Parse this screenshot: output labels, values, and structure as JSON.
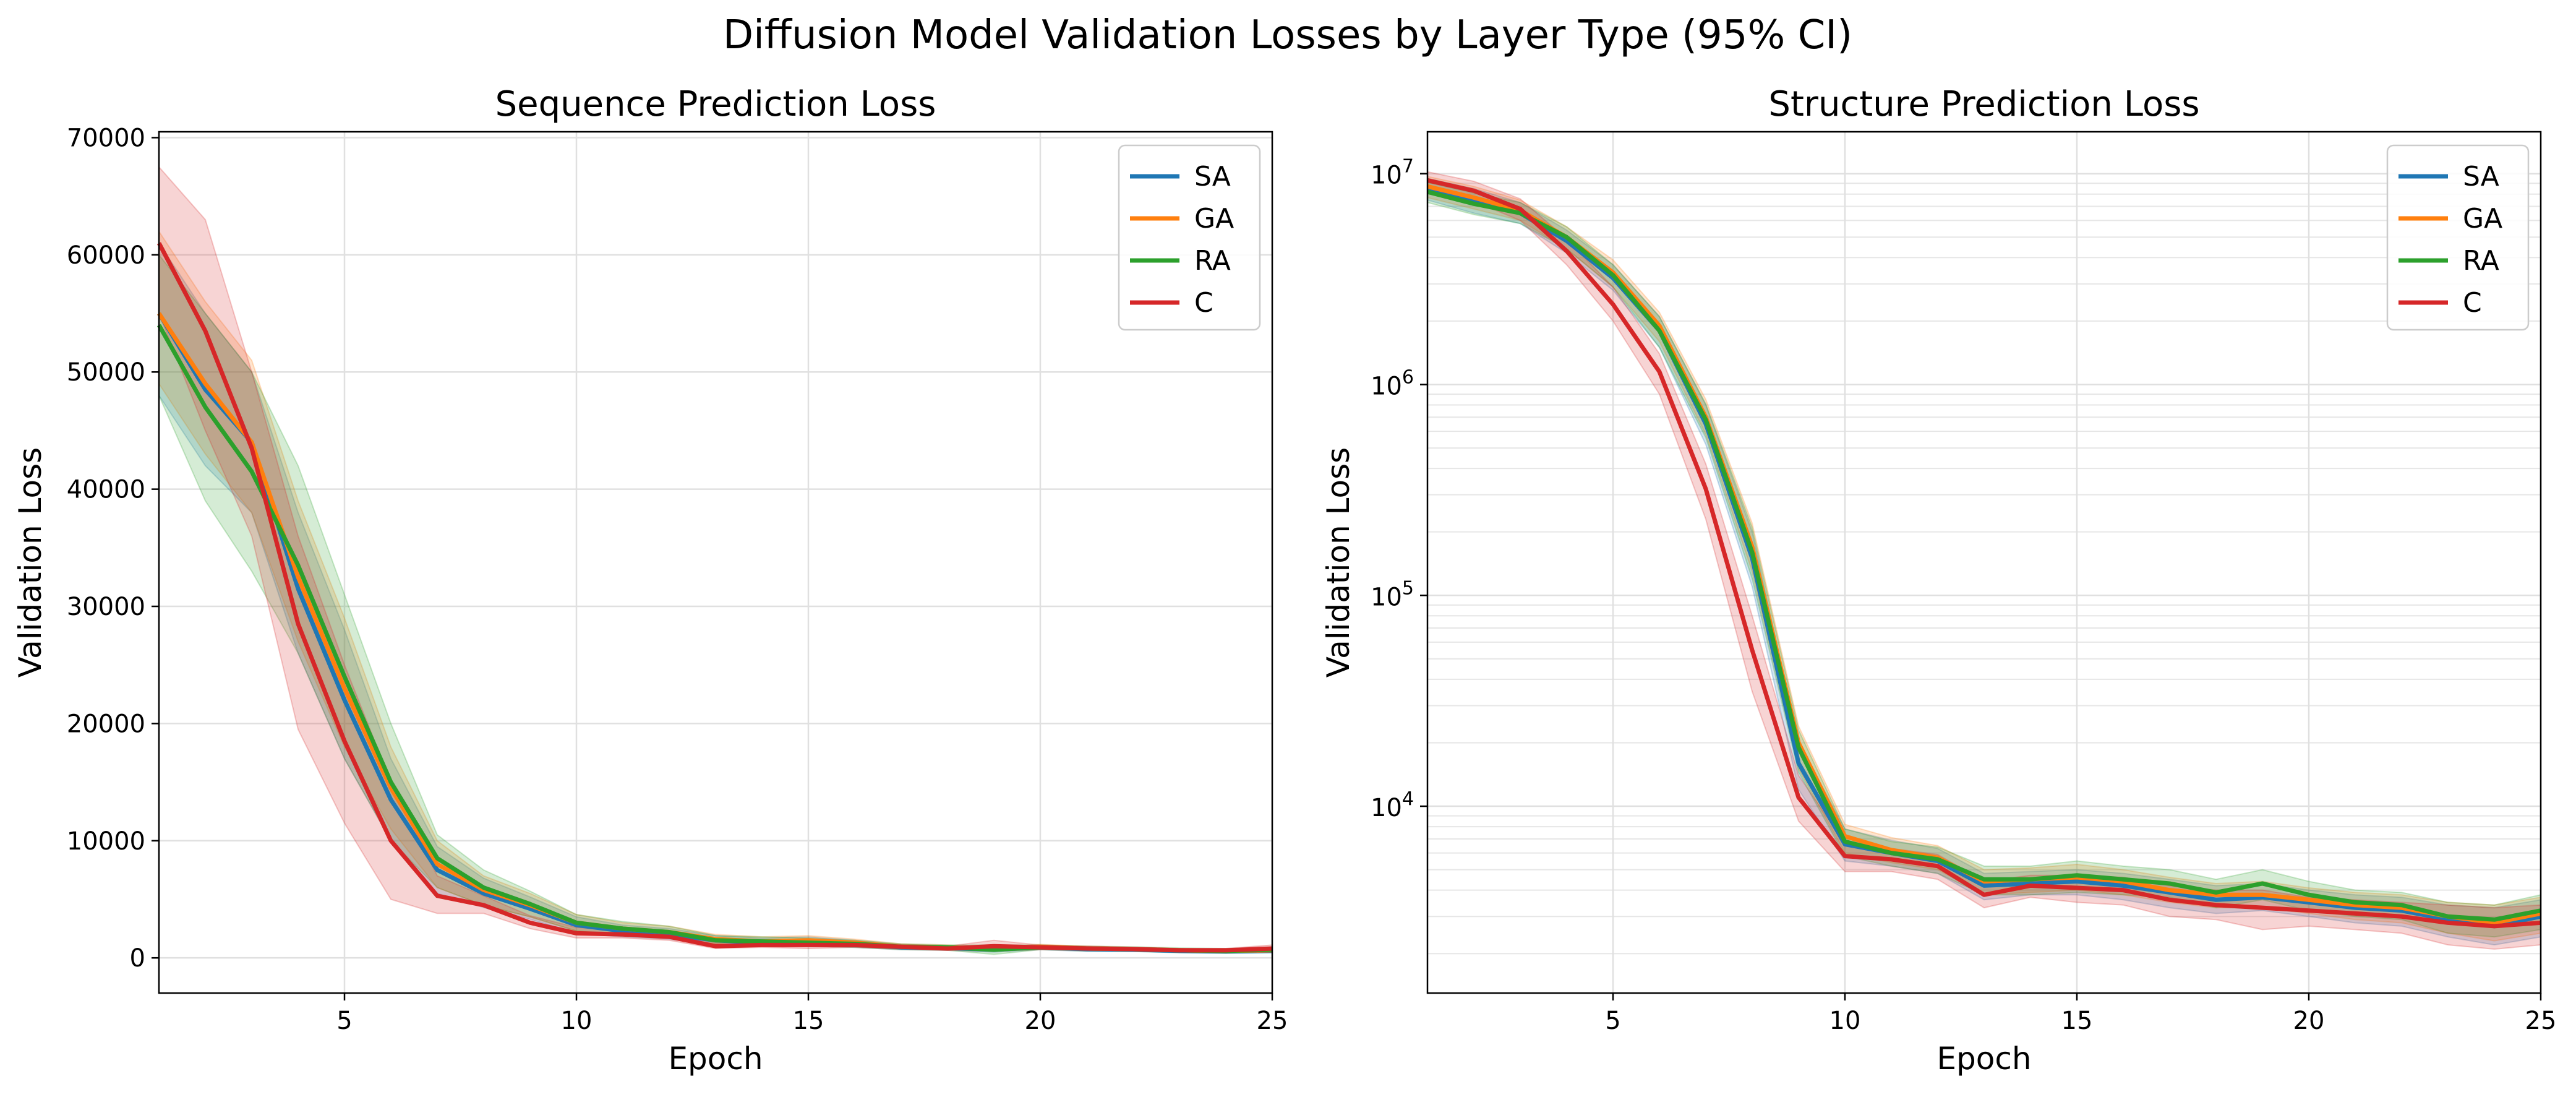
{
  "figure_title": "Diffusion Model Validation Losses by Layer Type (95% CI)",
  "chart_data": [
    {
      "type": "line",
      "title": "Sequence Prediction Loss",
      "xlabel": "Epoch",
      "ylabel": "Validation Loss",
      "xlim": [
        1,
        25
      ],
      "ylim": [
        -3000,
        70500
      ],
      "yscale": "linear",
      "xticks": [
        5,
        10,
        15,
        20,
        25
      ],
      "yticks": [
        0,
        10000,
        20000,
        30000,
        40000,
        50000,
        60000,
        70000
      ],
      "ytick_labels": [
        "0",
        "10000",
        "20000",
        "30000",
        "40000",
        "50000",
        "60000",
        "70000"
      ],
      "grid": true,
      "legend_position": "upper-right",
      "x": [
        1,
        2,
        3,
        4,
        5,
        6,
        7,
        8,
        9,
        10,
        11,
        12,
        13,
        14,
        15,
        16,
        17,
        18,
        19,
        20,
        21,
        22,
        23,
        24,
        25
      ],
      "series": [
        {
          "name": "SA",
          "color": "#1f77b4",
          "values": [
            55000,
            48500,
            44000,
            31500,
            22000,
            13500,
            7500,
            5500,
            4200,
            2800,
            2300,
            2000,
            1500,
            1300,
            1400,
            1200,
            900,
            850,
            700,
            900,
            750,
            700,
            600,
            550,
            600
          ],
          "lower": [
            48000,
            42000,
            38000,
            26000,
            17000,
            10000,
            5500,
            4300,
            3300,
            2100,
            1800,
            1600,
            1100,
            1000,
            1000,
            900,
            700,
            650,
            500,
            700,
            550,
            550,
            450,
            400,
            450
          ],
          "upper": [
            61000,
            55000,
            50000,
            38000,
            28000,
            17000,
            9500,
            6800,
            5200,
            3500,
            2800,
            2500,
            1900,
            1700,
            1800,
            1500,
            1100,
            1050,
            900,
            1100,
            950,
            850,
            750,
            700,
            750
          ]
        },
        {
          "name": "GA",
          "color": "#ff7f0e",
          "values": [
            55000,
            49000,
            44000,
            32500,
            23000,
            14500,
            8000,
            5800,
            4500,
            3000,
            2500,
            2200,
            1600,
            1400,
            1500,
            1300,
            950,
            900,
            750,
            950,
            800,
            750,
            650,
            600,
            650
          ],
          "lower": [
            49000,
            43000,
            38000,
            27000,
            18000,
            11000,
            6000,
            4500,
            3500,
            2300,
            2000,
            1700,
            1200,
            1100,
            1100,
            1000,
            750,
            700,
            550,
            750,
            600,
            600,
            500,
            450,
            500
          ],
          "upper": [
            62000,
            56000,
            51000,
            39000,
            29000,
            18000,
            10000,
            7000,
            5500,
            3700,
            3000,
            2700,
            2000,
            1800,
            1900,
            1600,
            1200,
            1100,
            950,
            1150,
            1000,
            900,
            800,
            750,
            800
          ]
        },
        {
          "name": "RA",
          "color": "#2ca02c",
          "values": [
            54000,
            47000,
            41500,
            33500,
            24000,
            15000,
            8500,
            6000,
            4600,
            3000,
            2500,
            2200,
            1500,
            1400,
            1300,
            1200,
            950,
            900,
            700,
            900,
            800,
            750,
            650,
            600,
            700
          ],
          "lower": [
            48000,
            39000,
            33000,
            26000,
            17000,
            10000,
            6000,
            4500,
            3500,
            2300,
            1900,
            1700,
            1100,
            1000,
            1000,
            900,
            700,
            650,
            300,
            700,
            600,
            550,
            450,
            400,
            500
          ],
          "upper": [
            60000,
            55000,
            50000,
            42000,
            31000,
            20000,
            10500,
            7500,
            5700,
            3700,
            3100,
            2700,
            1900,
            1800,
            1700,
            1500,
            1200,
            1100,
            1100,
            1100,
            1000,
            950,
            850,
            800,
            900
          ]
        },
        {
          "name": "C",
          "color": "#d62728",
          "values": [
            61000,
            53500,
            43500,
            28500,
            18500,
            10000,
            5300,
            4500,
            3000,
            2100,
            2000,
            1800,
            1000,
            1100,
            1100,
            1100,
            950,
            800,
            1000,
            900,
            800,
            750,
            650,
            650,
            800
          ],
          "lower": [
            55000,
            45000,
            36000,
            19500,
            11500,
            5000,
            3800,
            3800,
            2500,
            1700,
            1700,
            1500,
            800,
            900,
            800,
            900,
            750,
            650,
            600,
            700,
            650,
            600,
            500,
            500,
            600
          ],
          "upper": [
            67500,
            63000,
            50000,
            36000,
            25000,
            15000,
            7000,
            5300,
            3600,
            2600,
            2400,
            2200,
            1300,
            1400,
            1400,
            1300,
            1150,
            1000,
            1500,
            1100,
            1000,
            900,
            800,
            800,
            1100
          ]
        }
      ]
    },
    {
      "type": "line",
      "title": "Structure Prediction Loss",
      "xlabel": "Epoch",
      "ylabel": "Validation Loss",
      "xlim": [
        1,
        25
      ],
      "ylim": [
        1300,
        15800000
      ],
      "yscale": "log",
      "xticks": [
        5,
        10,
        15,
        20,
        25
      ],
      "yticks": [
        10000,
        100000,
        1000000,
        10000000
      ],
      "ytick_labels": [
        {
          "base": "10",
          "exp": "4"
        },
        {
          "base": "10",
          "exp": "5"
        },
        {
          "base": "10",
          "exp": "6"
        },
        {
          "base": "10",
          "exp": "7"
        }
      ],
      "grid": true,
      "grid_minor": true,
      "legend_position": "upper-right",
      "x": [
        1,
        2,
        3,
        4,
        5,
        6,
        7,
        8,
        9,
        10,
        11,
        12,
        13,
        14,
        15,
        16,
        17,
        18,
        19,
        20,
        21,
        22,
        23,
        24,
        25
      ],
      "series": [
        {
          "name": "SA",
          "color": "#1f77b4",
          "values": [
            8500000,
            7500000,
            6500000,
            4800000,
            3200000,
            1800000,
            650000,
            150000,
            16000,
            6600,
            6000,
            5500,
            4200,
            4300,
            4400,
            4200,
            3900,
            3600,
            3700,
            3500,
            3300,
            3200,
            2900,
            2700,
            3000
          ],
          "lower": [
            7500000,
            6500000,
            5800000,
            4200000,
            2800000,
            1500000,
            520000,
            110000,
            12000,
            5500,
            5200,
            4800,
            3600,
            3800,
            3800,
            3600,
            3300,
            3100,
            3200,
            3000,
            2800,
            2700,
            2400,
            2200,
            2400
          ],
          "upper": [
            9500000,
            8500000,
            7300000,
            5400000,
            3700000,
            2100000,
            800000,
            200000,
            20000,
            7800,
            6900,
            6300,
            4800,
            4900,
            5000,
            4800,
            4500,
            4200,
            4300,
            4000,
            3800,
            3700,
            3400,
            3300,
            3600
          ]
        },
        {
          "name": "GA",
          "color": "#ff7f0e",
          "values": [
            8700000,
            7700000,
            6700000,
            5000000,
            3400000,
            1900000,
            700000,
            170000,
            20000,
            7200,
            6200,
            5700,
            4400,
            4500,
            4600,
            4400,
            4000,
            3800,
            3800,
            3600,
            3400,
            3300,
            3000,
            2800,
            3100
          ],
          "lower": [
            7700000,
            6800000,
            6000000,
            4400000,
            2900000,
            1600000,
            580000,
            130000,
            15000,
            6000,
            5400,
            5000,
            3800,
            3900,
            4000,
            3800,
            3500,
            3300,
            3300,
            3100,
            2900,
            2800,
            2500,
            2300,
            2500
          ],
          "upper": [
            9700000,
            8700000,
            7500000,
            5600000,
            3900000,
            2200000,
            850000,
            220000,
            24000,
            8200,
            7100,
            6500,
            5000,
            5100,
            5300,
            5000,
            4600,
            4300,
            4400,
            4100,
            3900,
            3800,
            3500,
            3400,
            3700
          ]
        },
        {
          "name": "RA",
          "color": "#2ca02c",
          "values": [
            8200000,
            7200000,
            6500000,
            5000000,
            3300000,
            1800000,
            680000,
            160000,
            19000,
            6800,
            6000,
            5600,
            4500,
            4500,
            4700,
            4500,
            4300,
            3900,
            4300,
            3800,
            3500,
            3400,
            3000,
            2900,
            3200
          ],
          "lower": [
            7300000,
            6400000,
            5800000,
            4400000,
            2900000,
            1500000,
            560000,
            120000,
            14500,
            5800,
            5200,
            4800,
            3800,
            3800,
            3900,
            3800,
            3700,
            3300,
            3600,
            3200,
            3000,
            2900,
            2500,
            2400,
            2600
          ],
          "upper": [
            9100000,
            8100000,
            7300000,
            5600000,
            3700000,
            2100000,
            810000,
            210000,
            23000,
            7800,
            6800,
            6400,
            5200,
            5200,
            5500,
            5200,
            5000,
            4500,
            5000,
            4400,
            4000,
            3900,
            3500,
            3400,
            3800
          ]
        },
        {
          "name": "C",
          "color": "#d62728",
          "values": [
            9300000,
            8300000,
            6800000,
            4300000,
            2400000,
            1150000,
            320000,
            55000,
            11000,
            5800,
            5600,
            5200,
            3800,
            4200,
            4100,
            4000,
            3600,
            3400,
            3300,
            3200,
            3100,
            3000,
            2800,
            2700,
            2800
          ],
          "lower": [
            8400000,
            7400000,
            6000000,
            3700000,
            2000000,
            900000,
            230000,
            35000,
            8500,
            4900,
            4900,
            4500,
            3300,
            3700,
            3500,
            3400,
            3000,
            2900,
            2600,
            2700,
            2600,
            2500,
            2200,
            2100,
            2200
          ],
          "upper": [
            10200000,
            9200000,
            7600000,
            4900000,
            2900000,
            1400000,
            420000,
            80000,
            14000,
            6700,
            6300,
            5900,
            4400,
            4700,
            4700,
            4600,
            4200,
            4000,
            4000,
            3700,
            3600,
            3500,
            3400,
            3300,
            3400
          ]
        }
      ]
    }
  ]
}
